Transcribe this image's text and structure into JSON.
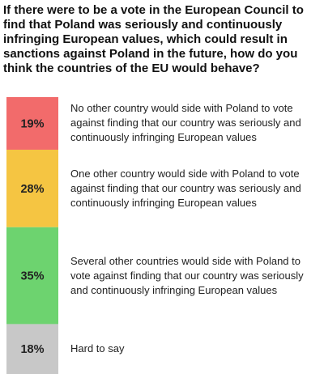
{
  "chart_data": {
    "type": "bar",
    "orientation": "stacked-vertical",
    "title": "If there were to be a vote in the European Council to find that Poland was seriously and continuously infringing European values, which could result in sanctions against Poland in the future, how do you think the countries of the EU would behave?",
    "categories": [
      "No other country would side with Poland to vote against finding that our country was seriously and continuously infringing European values",
      "One other country would side with Poland to vote against finding that our country was seriously and continuously infringing European values",
      "Several other countries would side with Poland to vote against finding that our country was seriously and continuously infringing European values",
      "Hard to say"
    ],
    "values": [
      19,
      28,
      35,
      18
    ],
    "value_labels": [
      "19%",
      "28%",
      "35%",
      "18%"
    ],
    "unit": "%",
    "colors": [
      "#f26b6b",
      "#f5c542",
      "#6dd36f",
      "#c8c8c8"
    ],
    "grid": false,
    "legend": "none"
  }
}
